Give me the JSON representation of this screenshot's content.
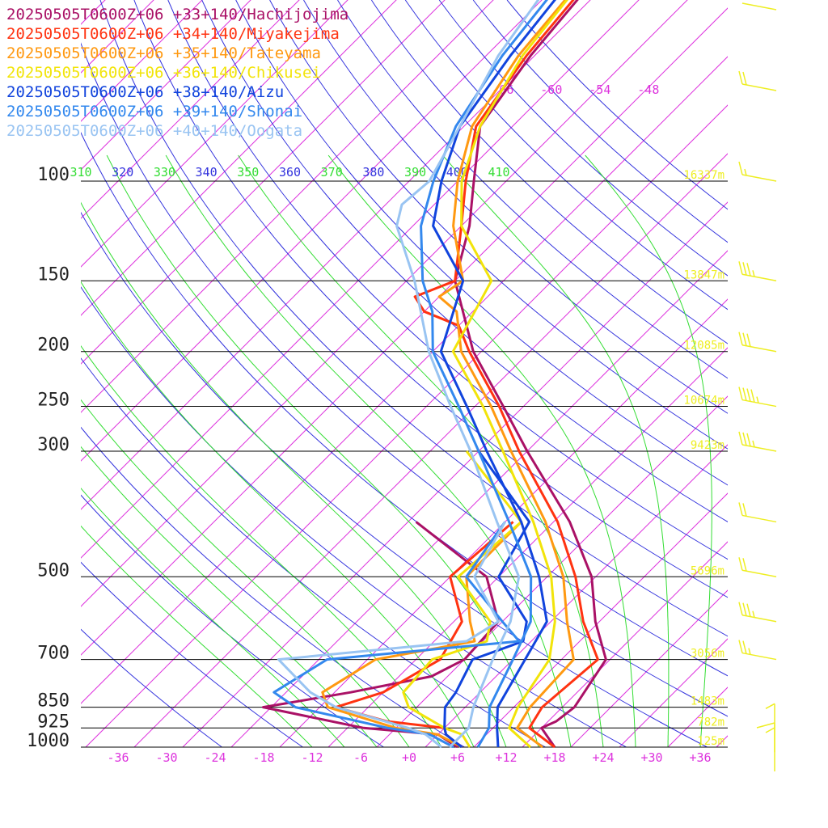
{
  "chart_data": {
    "type": "line",
    "title": "",
    "legend_placement": "top-left",
    "grid": true,
    "x_range_degC": [
      -40,
      40
    ],
    "y_range_hPa": [
      100,
      1000
    ],
    "y_scale": "log-pressure",
    "skew": "temperature lines skewed 45 degrees",
    "pressure_ticks": [
      100,
      150,
      200,
      250,
      300,
      500,
      700,
      850,
      925,
      1000
    ],
    "pressure_labels": [
      "100",
      "150",
      "200",
      "250",
      "300",
      "500",
      "700",
      "850",
      "925",
      "1000"
    ],
    "temp_tick_values": [
      -36,
      -30,
      -24,
      -18,
      -12,
      -6,
      0,
      6,
      12,
      18,
      24,
      30,
      36
    ],
    "temp_tick_labels": [
      "-36",
      "-30",
      "-24",
      "-18",
      "-12",
      "-6",
      "+0",
      "+6",
      "+12",
      "+18",
      "+24",
      "+30",
      "+36"
    ],
    "upper_temp_labels": [
      "-66",
      "-60",
      "-54",
      "-48"
    ],
    "theta_labels": [
      "310",
      "320",
      "330",
      "340",
      "350",
      "360",
      "370",
      "380",
      "390",
      "400",
      "410"
    ],
    "heights": [
      {
        "p": 100,
        "label": "16337m"
      },
      {
        "p": 150,
        "label": "13847m"
      },
      {
        "p": 200,
        "label": "12085m"
      },
      {
        "p": 250,
        "label": "10674m"
      },
      {
        "p": 300,
        "label": "9423m"
      },
      {
        "p": 500,
        "label": "5696m"
      },
      {
        "p": 700,
        "label": "3056m"
      },
      {
        "p": 850,
        "label": "1483m"
      },
      {
        "p": 925,
        "label": "782m"
      },
      {
        "p": 1000,
        "label": "125m"
      }
    ],
    "colors": {
      "isotherm": "#dd33dd",
      "dry_adiabat": "#3333dd",
      "moist_adiabat": "#33dd33",
      "isobar": "#000000",
      "height_label": "#eeee22",
      "wind_barb": "#eeee22"
    },
    "series": [
      {
        "name": "20250505T0600Z+06 +33+140/Hachijojima",
        "color": "#aa1166",
        "temperature": [
          [
            1000,
            18.0
          ],
          [
            925,
            14.0
          ],
          [
            900,
            15.0
          ],
          [
            850,
            15.5
          ],
          [
            700,
            13.5
          ],
          [
            600,
            7.5
          ],
          [
            500,
            1.5
          ],
          [
            400,
            -8.0
          ],
          [
            300,
            -22.0
          ],
          [
            250,
            -30.5
          ],
          [
            200,
            -41.0
          ],
          [
            150,
            -52.0
          ],
          [
            120,
            -57.0
          ],
          [
            100,
            -62.0
          ],
          [
            80,
            -68.0
          ],
          [
            60,
            -70.5
          ],
          [
            40,
            -72.5
          ],
          [
            30,
            -75.0
          ]
        ],
        "dewpoint": [
          [
            1000,
            6.0
          ],
          [
            950,
            2.0
          ],
          [
            925,
            -8.0
          ],
          [
            850,
            -23.0
          ],
          [
            800,
            -14.0
          ],
          [
            750,
            -6.0
          ],
          [
            700,
            -4.0
          ],
          [
            600,
            -4.5
          ],
          [
            500,
            -11.5
          ],
          [
            400,
            -27.0
          ]
        ]
      },
      {
        "name": "20250505T0600Z+06 +34+140/Miyakejima",
        "color": "#ff3311",
        "temperature": [
          [
            1000,
            18.0
          ],
          [
            925,
            12.5
          ],
          [
            850,
            11.5
          ],
          [
            700,
            12.5
          ],
          [
            600,
            6.0
          ],
          [
            500,
            -0.5
          ],
          [
            400,
            -9.5
          ],
          [
            300,
            -23.0
          ],
          [
            250,
            -31.0
          ],
          [
            200,
            -41.5
          ],
          [
            180,
            -46.0
          ],
          [
            170,
            -52.0
          ],
          [
            160,
            -55.0
          ],
          [
            150,
            -52.0
          ],
          [
            120,
            -58.0
          ],
          [
            100,
            -63.0
          ],
          [
            80,
            -68.5
          ],
          [
            60,
            -71.0
          ],
          [
            40,
            -73.0
          ],
          [
            30,
            -75.0
          ]
        ],
        "dewpoint": [
          [
            1000,
            6.5
          ],
          [
            950,
            3.0
          ],
          [
            925,
            2.0
          ],
          [
            900,
            -6.0
          ],
          [
            850,
            -14.0
          ],
          [
            800,
            -10.0
          ],
          [
            700,
            -7.0
          ],
          [
            600,
            -9.0
          ],
          [
            500,
            -16.0
          ],
          [
            400,
            -15.0
          ]
        ]
      },
      {
        "name": "20250505T0600Z+06 +35+140/Tateyama",
        "color": "#ff9911",
        "temperature": [
          [
            1000,
            16.5
          ],
          [
            925,
            11.0
          ],
          [
            850,
            10.0
          ],
          [
            700,
            9.5
          ],
          [
            600,
            4.0
          ],
          [
            500,
            -2.0
          ],
          [
            400,
            -11.0
          ],
          [
            300,
            -24.0
          ],
          [
            250,
            -32.0
          ],
          [
            200,
            -42.5
          ],
          [
            170,
            -48.0
          ],
          [
            160,
            -52.0
          ],
          [
            150,
            -51.0
          ],
          [
            120,
            -59.0
          ],
          [
            100,
            -64.0
          ],
          [
            80,
            -69.0
          ],
          [
            60,
            -72.0
          ],
          [
            40,
            -74.0
          ]
        ],
        "dewpoint": [
          [
            1000,
            6.5
          ],
          [
            950,
            2.0
          ],
          [
            925,
            -4.0
          ],
          [
            850,
            -15.0
          ],
          [
            800,
            -17.5
          ],
          [
            700,
            -15.0
          ],
          [
            650,
            -5.0
          ],
          [
            600,
            -8.0
          ],
          [
            500,
            -14.0
          ],
          [
            400,
            -14.0
          ]
        ]
      },
      {
        "name": "20250505T0600Z+06 +36+140/Chikusei",
        "color": "#f2e40a",
        "temperature": [
          [
            1000,
            15.0
          ],
          [
            925,
            10.0
          ],
          [
            850,
            8.5
          ],
          [
            700,
            6.5
          ],
          [
            600,
            2.5
          ],
          [
            500,
            -3.5
          ],
          [
            400,
            -12.5
          ],
          [
            300,
            -25.0
          ],
          [
            250,
            -33.0
          ],
          [
            200,
            -43.5
          ],
          [
            150,
            -47.5
          ],
          [
            120,
            -58.0
          ],
          [
            100,
            -63.5
          ],
          [
            80,
            -68.0
          ],
          [
            60,
            -71.5
          ],
          [
            40,
            -74.0
          ]
        ],
        "dewpoint": [
          [
            1000,
            7.5
          ],
          [
            950,
            5.0
          ],
          [
            925,
            2.0
          ],
          [
            850,
            -5.0
          ],
          [
            800,
            -7.5
          ],
          [
            700,
            -8.0
          ],
          [
            650,
            -3.5
          ],
          [
            600,
            -5.5
          ],
          [
            500,
            -15.0
          ],
          [
            400,
            -14.0
          ],
          [
            300,
            -29.5
          ]
        ]
      },
      {
        "name": "20250505T0600Z+06 +38+140/Aizu",
        "color": "#1144dd",
        "temperature": [
          [
            1000,
            11.0
          ],
          [
            925,
            8.5
          ],
          [
            850,
            6.0
          ],
          [
            700,
            3.5
          ],
          [
            600,
            1.5
          ],
          [
            500,
            -5.0
          ],
          [
            400,
            -14.0
          ],
          [
            300,
            -27.0
          ],
          [
            250,
            -35.0
          ],
          [
            200,
            -45.0
          ],
          [
            150,
            -51.0
          ],
          [
            120,
            -61.5
          ],
          [
            100,
            -66.0
          ],
          [
            80,
            -70.5
          ],
          [
            60,
            -73.0
          ],
          [
            40,
            -75.5
          ]
        ],
        "dewpoint": [
          [
            1000,
            6.5
          ],
          [
            950,
            3.0
          ],
          [
            925,
            2.0
          ],
          [
            850,
            -0.5
          ],
          [
            800,
            -1.0
          ],
          [
            700,
            -3.0
          ],
          [
            650,
            1.0
          ],
          [
            600,
            -1.0
          ],
          [
            500,
            -10.0
          ],
          [
            400,
            -13.0
          ],
          [
            300,
            -28.0
          ]
        ]
      },
      {
        "name": "20250505T0600Z+06 +39+140/Shonai",
        "color": "#3388ee",
        "temperature": [
          [
            1000,
            8.5
          ],
          [
            925,
            7.5
          ],
          [
            850,
            5.0
          ],
          [
            700,
            2.0
          ],
          [
            600,
            -0.5
          ],
          [
            500,
            -6.0
          ],
          [
            400,
            -15.5
          ],
          [
            300,
            -28.0
          ],
          [
            250,
            -36.0
          ],
          [
            200,
            -46.0
          ],
          [
            170,
            -51.0
          ],
          [
            150,
            -56.0
          ],
          [
            120,
            -63.0
          ],
          [
            100,
            -67.0
          ],
          [
            80,
            -71.0
          ],
          [
            60,
            -74.0
          ],
          [
            40,
            -76.5
          ]
        ],
        "dewpoint": [
          [
            1000,
            5.5
          ],
          [
            950,
            1.0
          ],
          [
            925,
            -5.0
          ],
          [
            850,
            -19.0
          ],
          [
            800,
            -23.5
          ],
          [
            700,
            -21.0
          ],
          [
            650,
            0.5
          ],
          [
            600,
            -4.0
          ],
          [
            500,
            -14.0
          ],
          [
            400,
            -16.0
          ]
        ]
      },
      {
        "name": "20250505T0600Z+06 +40+140/Oogata",
        "color": "#99c4f2",
        "temperature": [
          [
            1000,
            5.0
          ],
          [
            925,
            5.0
          ],
          [
            850,
            3.0
          ],
          [
            700,
            -0.5
          ],
          [
            600,
            -3.0
          ],
          [
            500,
            -7.5
          ],
          [
            400,
            -17.0
          ],
          [
            300,
            -29.0
          ],
          [
            250,
            -37.0
          ],
          [
            200,
            -46.5
          ],
          [
            150,
            -57.0
          ],
          [
            120,
            -66.0
          ],
          [
            110,
            -68.0
          ],
          [
            100,
            -67.5
          ],
          [
            80,
            -70.5
          ],
          [
            60,
            -74.5
          ],
          [
            40,
            -78.0
          ]
        ],
        "dewpoint": [
          [
            1000,
            4.0
          ],
          [
            950,
            0.5
          ],
          [
            925,
            -2.5
          ],
          [
            850,
            -14.0
          ],
          [
            800,
            -19.0
          ],
          [
            700,
            -27.0
          ],
          [
            650,
            -6.0
          ],
          [
            600,
            -4.5
          ],
          [
            500,
            -13.0
          ],
          [
            400,
            -16.0
          ]
        ]
      }
    ],
    "wind_barbs": [
      {
        "p": 30,
        "flag": false,
        "barbs": [],
        "tail_dir": "left"
      },
      {
        "p": 70,
        "barbs": [
          1,
          1
        ],
        "tail_dir": "left"
      },
      {
        "p": 100,
        "barbs": [
          1,
          0.5
        ],
        "tail_dir": "left"
      },
      {
        "p": 150,
        "barbs": [
          1,
          1,
          1,
          0.5
        ],
        "tail_dir": "left"
      },
      {
        "p": 200,
        "barbs": [
          1,
          1,
          1
        ],
        "tail_dir": "left"
      },
      {
        "p": 250,
        "barbs": [
          1,
          1,
          1,
          1,
          0.5
        ],
        "tail_dir": "left"
      },
      {
        "p": 300,
        "barbs": [
          1,
          1,
          1,
          0.5
        ],
        "tail_dir": "left"
      },
      {
        "p": 400,
        "barbs": [
          1,
          1
        ],
        "tail_dir": "left"
      },
      {
        "p": 500,
        "barbs": [
          1,
          1
        ],
        "tail_dir": "left"
      },
      {
        "p": 600,
        "barbs": [
          1,
          1,
          1,
          0.5
        ],
        "tail_dir": "left"
      },
      {
        "p": 700,
        "barbs": [
          1,
          1,
          0.5
        ],
        "tail_dir": "left"
      },
      {
        "p": 925,
        "barbs": [
          0.5
        ],
        "tail_dir": "down"
      },
      {
        "p": 1000,
        "barbs": [
          1,
          0.5
        ],
        "tail_dir": "down"
      }
    ]
  }
}
